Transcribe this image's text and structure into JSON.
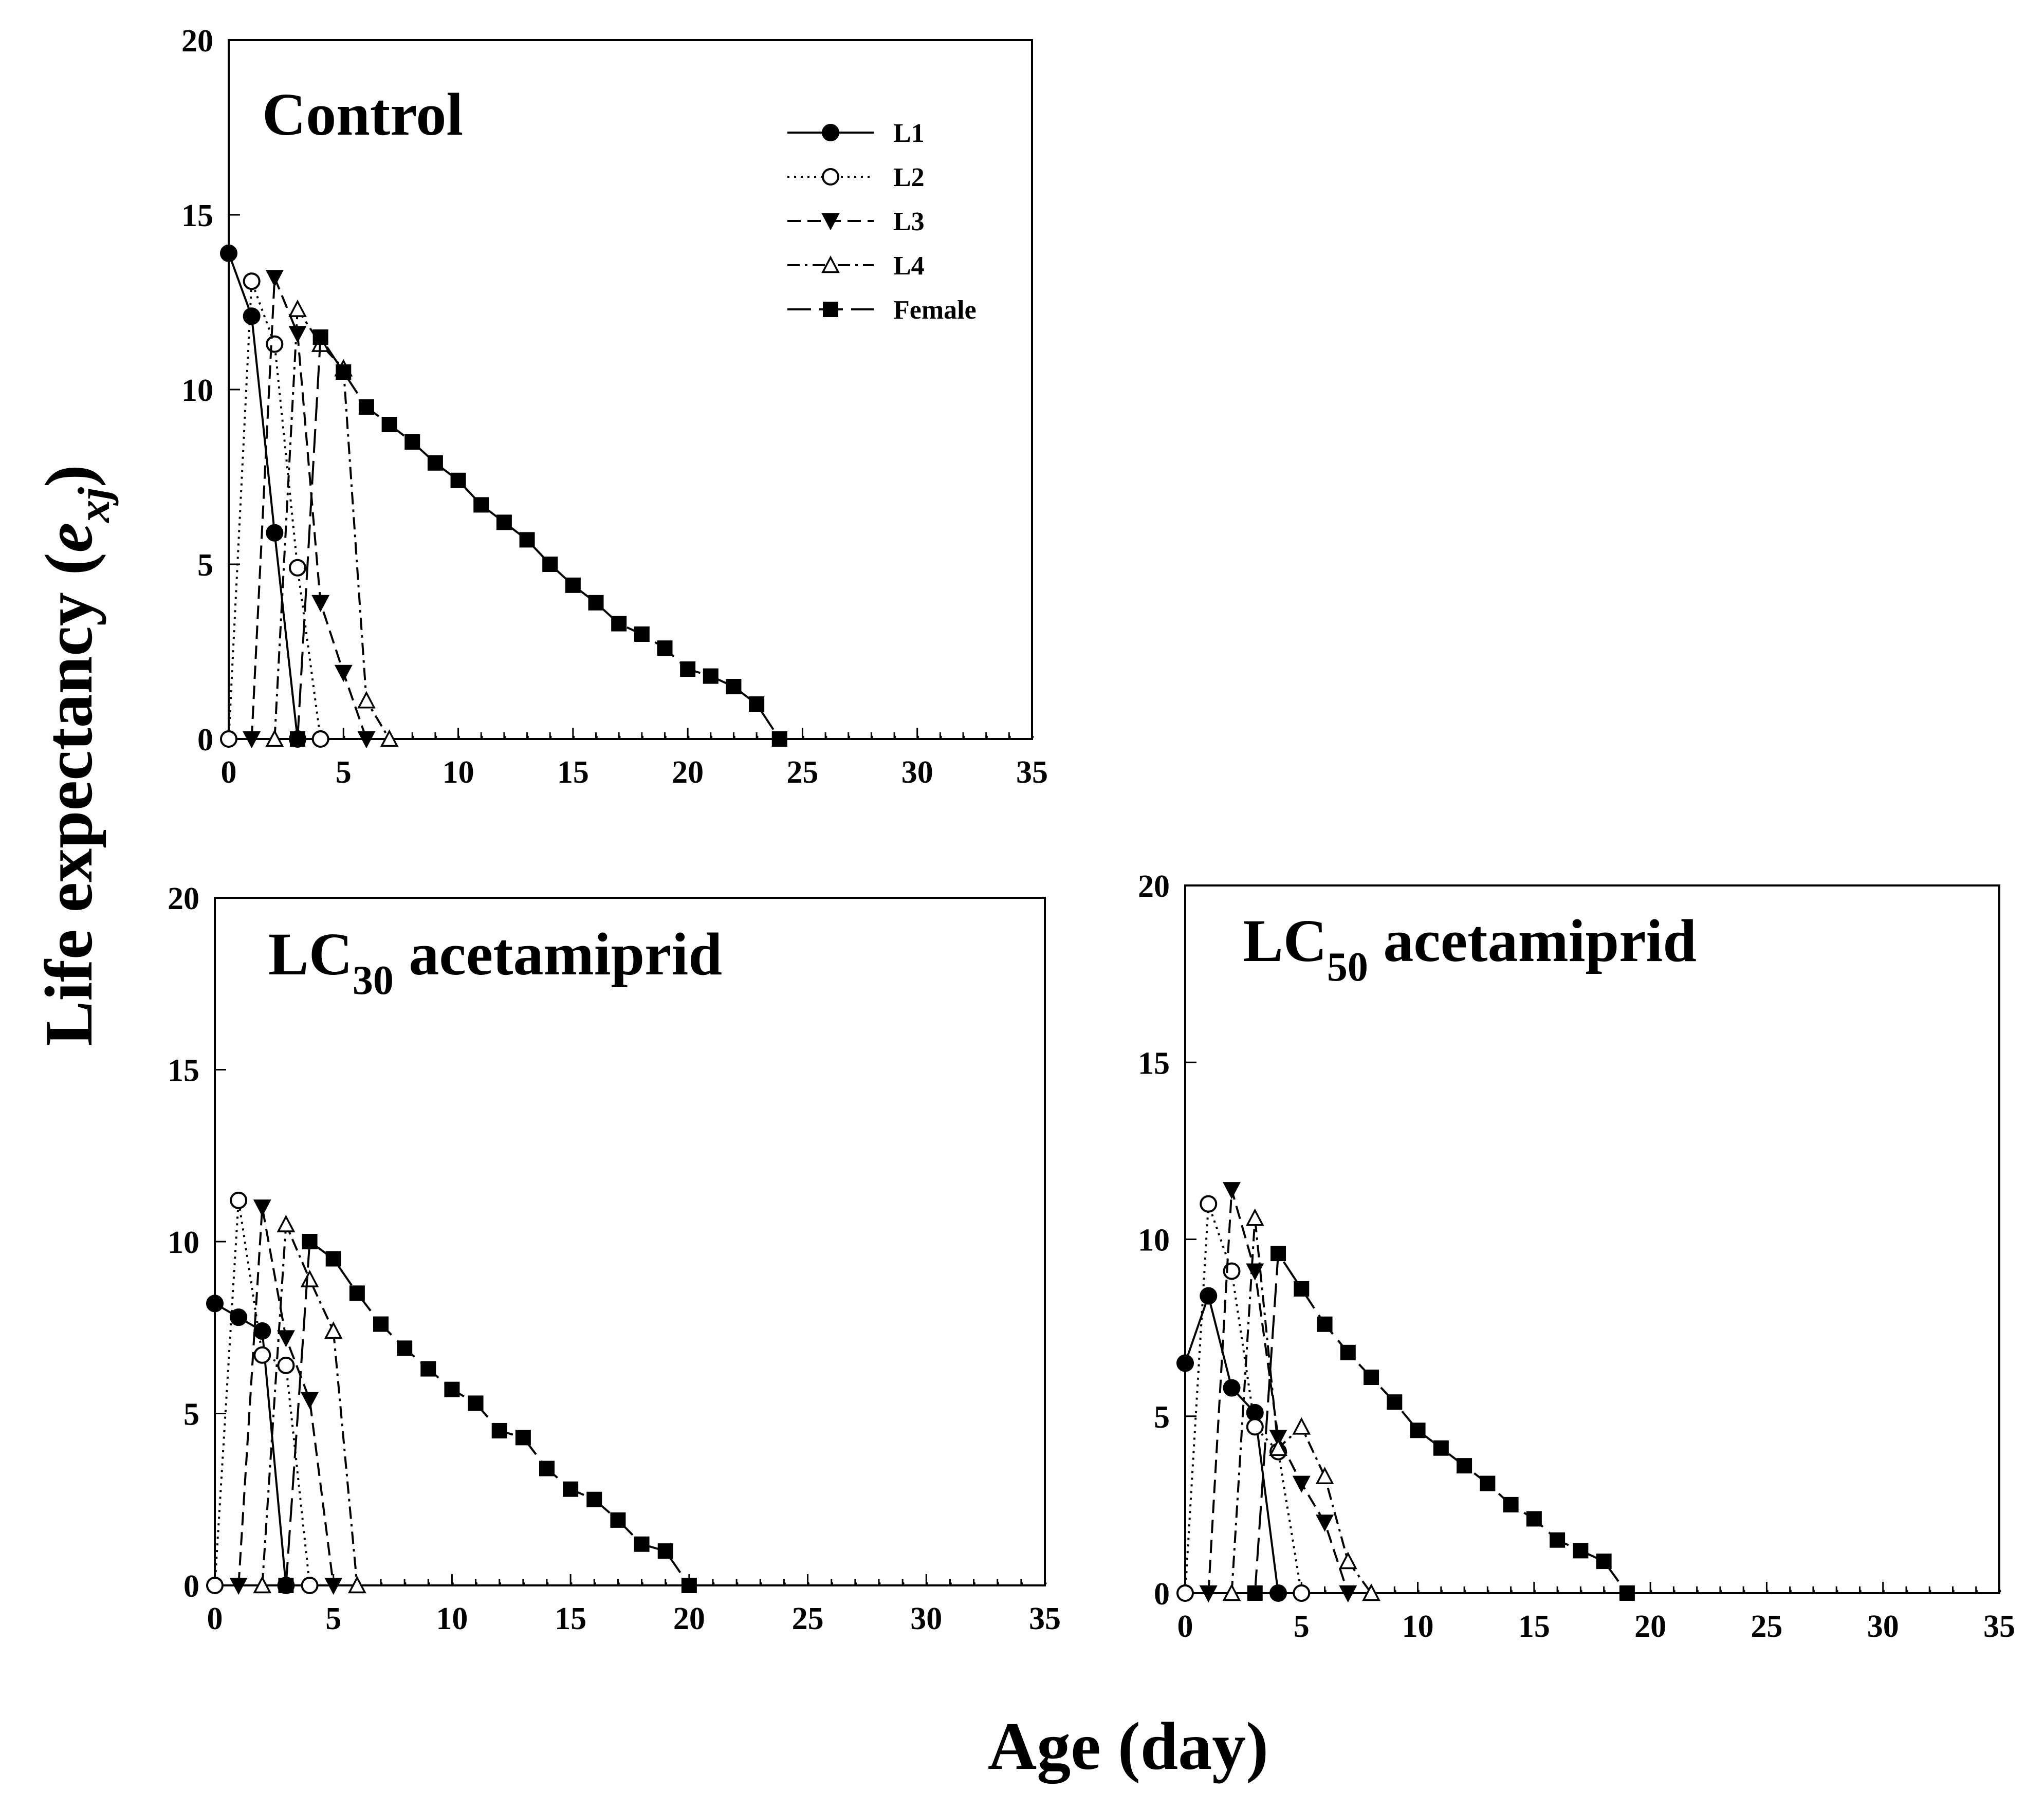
{
  "figure": {
    "ylabel_prefix": "Life expectancy (",
    "ylabel_var": "e",
    "ylabel_sub": "xj",
    "ylabel_suffix": ")",
    "xlabel": "Age (day)"
  },
  "chart_data": [
    {
      "type": "line",
      "title_main": "Control",
      "title_sub": "",
      "title_rest": "",
      "xlabel": "Age (day)",
      "ylabel": "Life expectancy (e_xj)",
      "xlim": [
        0,
        35
      ],
      "ylim": [
        0,
        20
      ],
      "xticks": [
        0,
        5,
        10,
        15,
        20,
        25,
        30,
        35
      ],
      "yticks": [
        0,
        5,
        10,
        15,
        20
      ],
      "series": [
        {
          "name": "L1",
          "marker": "circle-filled",
          "dash": "solid",
          "x": [
            0,
            1,
            2,
            3
          ],
          "y": [
            13.9,
            12.1,
            5.9,
            0
          ]
        },
        {
          "name": "L2",
          "marker": "circle-open",
          "dash": "dotted",
          "x": [
            0,
            1,
            2,
            3,
            4
          ],
          "y": [
            0,
            13.1,
            11.3,
            4.9,
            0
          ]
        },
        {
          "name": "L3",
          "marker": "triangle-down-filled",
          "dash": "dashed",
          "x": [
            1,
            2,
            3,
            4,
            5,
            6
          ],
          "y": [
            0,
            13.2,
            11.6,
            3.9,
            1.9,
            0
          ]
        },
        {
          "name": "L4",
          "marker": "triangle-up-open",
          "dash": "dashdot",
          "x": [
            2,
            3,
            4,
            5,
            6,
            7
          ],
          "y": [
            0,
            12.3,
            11.3,
            10.6,
            1.1,
            0
          ]
        },
        {
          "name": "Female",
          "marker": "square-filled",
          "dash": "longdash",
          "x": [
            3,
            4,
            5,
            6,
            7,
            8,
            9,
            10,
            11,
            12,
            13,
            14,
            15,
            16,
            17,
            18,
            19,
            20,
            21,
            22,
            23,
            24
          ],
          "y": [
            0,
            11.5,
            10.5,
            9.5,
            9.0,
            8.5,
            7.9,
            7.4,
            6.7,
            6.2,
            5.7,
            5.0,
            4.4,
            3.9,
            3.3,
            3.0,
            2.6,
            2.0,
            1.8,
            1.5,
            1.0,
            0
          ]
        }
      ]
    },
    {
      "type": "line",
      "title_main": "LC",
      "title_sub": "30",
      "title_rest": " acetamiprid",
      "xlabel": "Age (day)",
      "ylabel": "Life expectancy (e_xj)",
      "xlim": [
        0,
        35
      ],
      "ylim": [
        0,
        20
      ],
      "xticks": [
        0,
        5,
        10,
        15,
        20,
        25,
        30,
        35
      ],
      "yticks": [
        0,
        5,
        10,
        15,
        20
      ],
      "series": [
        {
          "name": "L1",
          "marker": "circle-filled",
          "dash": "solid",
          "x": [
            0,
            1,
            2,
            3
          ],
          "y": [
            8.2,
            7.8,
            7.4,
            0
          ]
        },
        {
          "name": "L2",
          "marker": "circle-open",
          "dash": "dotted",
          "x": [
            0,
            1,
            2,
            3,
            4
          ],
          "y": [
            0,
            11.2,
            6.7,
            6.4,
            0
          ]
        },
        {
          "name": "L3",
          "marker": "triangle-down-filled",
          "dash": "dashed",
          "x": [
            1,
            2,
            3,
            4,
            5
          ],
          "y": [
            0,
            11.0,
            7.2,
            5.4,
            0
          ]
        },
        {
          "name": "L4",
          "marker": "triangle-up-open",
          "dash": "dashdot",
          "x": [
            2,
            3,
            4,
            5,
            6
          ],
          "y": [
            0,
            10.5,
            8.9,
            7.4,
            0
          ]
        },
        {
          "name": "Female",
          "marker": "square-filled",
          "dash": "longdash",
          "x": [
            3,
            4,
            5,
            6,
            7,
            8,
            9,
            10,
            11,
            12,
            13,
            14,
            15,
            16,
            17,
            18,
            19,
            20
          ],
          "y": [
            0,
            10.0,
            9.5,
            8.5,
            7.6,
            6.9,
            6.3,
            5.7,
            5.3,
            4.5,
            4.3,
            3.4,
            2.8,
            2.5,
            1.9,
            1.2,
            1.0,
            0
          ]
        }
      ]
    },
    {
      "type": "line",
      "title_main": "LC",
      "title_sub": "50",
      "title_rest": " acetamiprid",
      "xlabel": "Age (day)",
      "ylabel": "Life expectancy (e_xj)",
      "xlim": [
        0,
        35
      ],
      "ylim": [
        0,
        20
      ],
      "xticks": [
        0,
        5,
        10,
        15,
        20,
        25,
        30,
        35
      ],
      "yticks": [
        0,
        5,
        10,
        15,
        20
      ],
      "series": [
        {
          "name": "L1",
          "marker": "circle-filled",
          "dash": "solid",
          "x": [
            0,
            1,
            2,
            3,
            4
          ],
          "y": [
            6.5,
            8.4,
            5.8,
            5.1,
            0
          ]
        },
        {
          "name": "L2",
          "marker": "circle-open",
          "dash": "dotted",
          "x": [
            0,
            1,
            2,
            3,
            4,
            5
          ],
          "y": [
            0,
            11.0,
            9.1,
            4.7,
            4.0,
            0
          ]
        },
        {
          "name": "L3",
          "marker": "triangle-down-filled",
          "dash": "dashed",
          "x": [
            1,
            2,
            3,
            4,
            5,
            6,
            7
          ],
          "y": [
            0,
            11.4,
            9.1,
            4.4,
            3.1,
            2.0,
            0
          ]
        },
        {
          "name": "L4",
          "marker": "triangle-up-open",
          "dash": "dashdot",
          "x": [
            2,
            3,
            4,
            5,
            6,
            7,
            8
          ],
          "y": [
            0,
            10.6,
            4.1,
            4.7,
            3.3,
            0.9,
            0
          ]
        },
        {
          "name": "Female",
          "marker": "square-filled",
          "dash": "longdash",
          "x": [
            3,
            4,
            5,
            6,
            7,
            8,
            9,
            10,
            11,
            12,
            13,
            14,
            15,
            16,
            17,
            18,
            19
          ],
          "y": [
            0,
            9.6,
            8.6,
            7.6,
            6.8,
            6.1,
            5.4,
            4.6,
            4.1,
            3.6,
            3.1,
            2.5,
            2.1,
            1.5,
            1.2,
            0.9,
            0
          ]
        }
      ]
    }
  ]
}
